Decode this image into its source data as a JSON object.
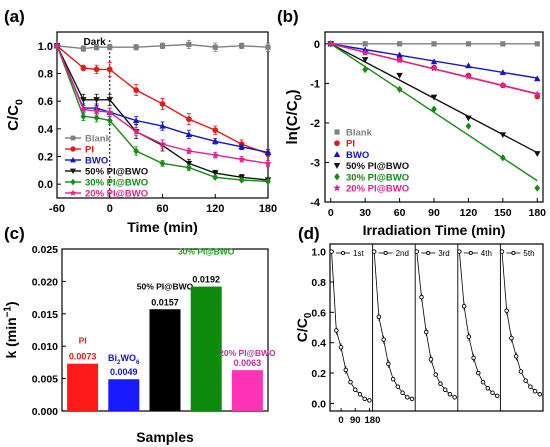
{
  "figure": {
    "panels": [
      {
        "id": "a",
        "label": "(a)"
      },
      {
        "id": "b",
        "label": "(b)"
      },
      {
        "id": "c",
        "label": "(c)"
      },
      {
        "id": "d",
        "label": "(d)"
      }
    ]
  },
  "chart_data": [
    {
      "panel": "(a)",
      "type": "line",
      "xlabel": "Time (min)",
      "ylabel": "C/C0",
      "xlim": [
        -60,
        180
      ],
      "ylim": [
        -0.1,
        1.1
      ],
      "xticks": [
        -60,
        0,
        60,
        120,
        180
      ],
      "xtick_labels": [
        "-60",
        "0",
        "60",
        "120",
        "180"
      ],
      "yticks": [
        0.0,
        0.2,
        0.4,
        0.6,
        0.8,
        1.0
      ],
      "ytick_labels": [
        "0.0",
        "0.2",
        "0.4",
        "0.6",
        "0.8",
        "1.0"
      ],
      "annotation": "Dark",
      "legend_position": "lower-left",
      "x": [
        -60,
        -30,
        -15,
        0,
        30,
        60,
        90,
        120,
        150,
        180
      ],
      "series": [
        {
          "name": "Blank",
          "color": "#808080",
          "marker": "square",
          "values": [
            1.0,
            0.98,
            0.99,
            0.99,
            0.99,
            1.0,
            1.01,
            0.99,
            1.0,
            0.99
          ],
          "err": [
            0.01,
            0.02,
            0.02,
            0.02,
            0.02,
            0.02,
            0.03,
            0.03,
            0.02,
            0.03
          ]
        },
        {
          "name": "PI",
          "color": "#e31a1c",
          "marker": "circle",
          "values": [
            1.0,
            0.84,
            0.83,
            0.83,
            0.68,
            0.58,
            0.47,
            0.39,
            0.29,
            0.22
          ],
          "err": [
            0.01,
            0.02,
            0.03,
            0.05,
            0.04,
            0.04,
            0.04,
            0.03,
            0.03,
            0.02
          ]
        },
        {
          "name": "BWO",
          "color": "#1515c8",
          "marker": "triangle-up",
          "values": [
            1.0,
            0.55,
            0.55,
            0.52,
            0.46,
            0.42,
            0.36,
            0.31,
            0.27,
            0.23
          ],
          "err": [
            0.01,
            0.03,
            0.03,
            0.03,
            0.03,
            0.03,
            0.03,
            0.02,
            0.02,
            0.02
          ]
        },
        {
          "name": "50% PI@BWO",
          "color": "#111111",
          "marker": "triangle-down",
          "values": [
            1.0,
            0.61,
            0.61,
            0.61,
            0.38,
            0.28,
            0.15,
            0.08,
            0.05,
            0.03
          ],
          "err": [
            0.01,
            0.04,
            0.04,
            0.04,
            0.05,
            0.04,
            0.03,
            0.02,
            0.02,
            0.01
          ]
        },
        {
          "name": "30% PI@BWO",
          "color": "#178a17",
          "marker": "diamond",
          "values": [
            1.0,
            0.49,
            0.48,
            0.46,
            0.24,
            0.15,
            0.12,
            0.05,
            0.03,
            0.02
          ],
          "err": [
            0.01,
            0.03,
            0.03,
            0.03,
            0.03,
            0.02,
            0.02,
            0.01,
            0.01,
            0.01
          ]
        },
        {
          "name": "20% PI@BWO",
          "color": "#e0248e",
          "marker": "star",
          "values": [
            1.0,
            0.54,
            0.53,
            0.52,
            0.38,
            0.29,
            0.24,
            0.21,
            0.18,
            0.15
          ],
          "err": [
            0.01,
            0.03,
            0.03,
            0.03,
            0.03,
            0.03,
            0.02,
            0.02,
            0.02,
            0.02
          ]
        }
      ]
    },
    {
      "panel": "(b)",
      "type": "scatter",
      "xlabel": "Irradiation Time (min)",
      "ylabel": "ln(C/C0)",
      "xlim": [
        -5,
        185
      ],
      "ylim": [
        -4,
        0.3
      ],
      "xticks": [
        0,
        30,
        60,
        90,
        120,
        150,
        180
      ],
      "xtick_labels": [
        "0",
        "30",
        "60",
        "90",
        "120",
        "150",
        "180"
      ],
      "yticks": [
        0,
        -1,
        -2,
        -3,
        -4
      ],
      "ytick_labels": [
        "0",
        "-1",
        "-2",
        "-3",
        "-4"
      ],
      "legend_position": "lower-left",
      "x": [
        0,
        30,
        60,
        90,
        120,
        150,
        180
      ],
      "series": [
        {
          "name": "Blank",
          "color": "#808080",
          "marker": "square",
          "values": [
            0,
            0,
            0,
            0,
            0,
            0,
            0
          ]
        },
        {
          "name": "PI",
          "color": "#e31a1c",
          "marker": "circle",
          "values": [
            0,
            -0.21,
            -0.4,
            -0.6,
            -0.8,
            -1.05,
            -1.33
          ]
        },
        {
          "name": "BWO",
          "color": "#1515c8",
          "marker": "triangle-up",
          "values": [
            0,
            -0.15,
            -0.28,
            -0.45,
            -0.55,
            -0.72,
            -0.88
          ]
        },
        {
          "name": "50% PI@BWO",
          "color": "#111111",
          "marker": "triangle-down",
          "values": [
            0,
            -0.4,
            -0.8,
            -1.35,
            -1.88,
            -2.3,
            -2.78
          ]
        },
        {
          "name": "30% PI@BWO",
          "color": "#178a17",
          "marker": "diamond",
          "values": [
            0,
            -0.65,
            -1.15,
            -1.65,
            -2.08,
            -2.88,
            -3.65
          ]
        },
        {
          "name": "20% PI@BWO",
          "color": "#e0248e",
          "marker": "star",
          "values": [
            0,
            -0.22,
            -0.42,
            -0.62,
            -0.83,
            -1.05,
            -1.27
          ]
        }
      ]
    },
    {
      "panel": "(c)",
      "type": "bar",
      "xlabel": "Samples",
      "ylabel": "k (min-1)",
      "ylim": [
        0,
        0.025
      ],
      "yticks": [
        0,
        0.005,
        0.01,
        0.015,
        0.02,
        0.025
      ],
      "ytick_labels": [
        "0.000",
        "0.005",
        "0.010",
        "0.015",
        "0.020",
        "0.025"
      ],
      "categories": [
        "PI",
        "Bi2WO6",
        "50% PI@BWO",
        "30% PI@BWO",
        "20% PI@BWO"
      ],
      "values": [
        0.0073,
        0.0049,
        0.0157,
        0.0192,
        0.0063
      ],
      "value_labels": [
        "0.0073",
        "0.0049",
        "0.0157",
        "0.0192",
        "0.0063"
      ],
      "colors": [
        "#ff1a1a",
        "#1a1aff",
        "#000000",
        "#0b8a0b",
        "#ff33b8"
      ],
      "name_colors": [
        "#e31a1c",
        "#1515c8",
        "#000000",
        "#1a9a1a",
        "#c0309a"
      ]
    },
    {
      "panel": "(d)",
      "type": "line",
      "xlabel": "",
      "ylabel": "C/C0",
      "ylim": [
        -0.05,
        1.05
      ],
      "yticks": [
        0.0,
        0.2,
        0.4,
        0.6,
        0.8,
        1.0
      ],
      "ytick_labels": [
        "0.0",
        "0.2",
        "0.4",
        "0.6",
        "0.8",
        "1.0"
      ],
      "xtick_labels": [
        "0",
        "90",
        "180"
      ],
      "x": [
        -60,
        -30,
        0,
        30,
        60,
        90,
        120,
        150,
        180
      ],
      "cycles": [
        {
          "name": "1st",
          "values": [
            1.0,
            0.48,
            0.37,
            0.22,
            0.14,
            0.09,
            0.06,
            0.03,
            0.02
          ]
        },
        {
          "name": "2nd",
          "values": [
            1.0,
            0.57,
            0.42,
            0.26,
            0.16,
            0.11,
            0.07,
            0.04,
            0.03
          ]
        },
        {
          "name": "3rd",
          "values": [
            1.0,
            0.7,
            0.47,
            0.29,
            0.19,
            0.13,
            0.09,
            0.06,
            0.04
          ]
        },
        {
          "name": "4th",
          "values": [
            1.0,
            0.64,
            0.44,
            0.3,
            0.2,
            0.14,
            0.1,
            0.07,
            0.05
          ]
        },
        {
          "name": "5th",
          "values": [
            1.0,
            0.61,
            0.43,
            0.31,
            0.21,
            0.15,
            0.11,
            0.08,
            0.06
          ]
        }
      ]
    }
  ]
}
